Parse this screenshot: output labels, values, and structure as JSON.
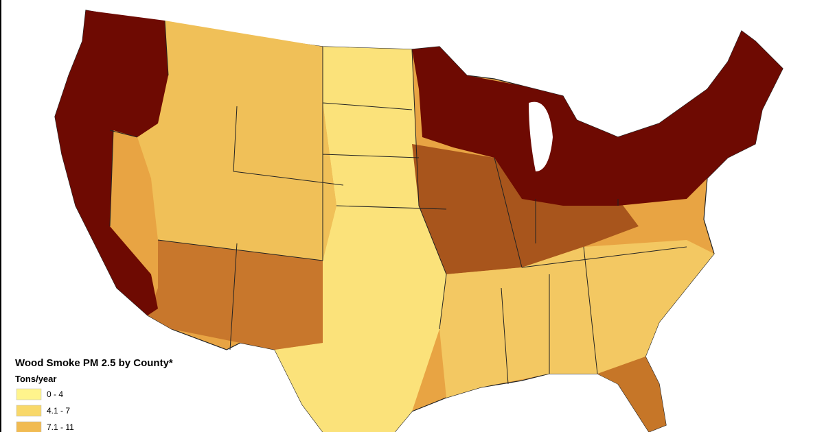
{
  "legend": {
    "title": "Wood Smoke PM 2.5 by County*",
    "unit": "Tons/year",
    "items": [
      {
        "label": "0 - 4",
        "color": "#fff48c"
      },
      {
        "label": "4.1 - 7",
        "color": "#f8d86a"
      },
      {
        "label": "7.1 - 11",
        "color": "#f1bb52"
      }
    ]
  }
}
